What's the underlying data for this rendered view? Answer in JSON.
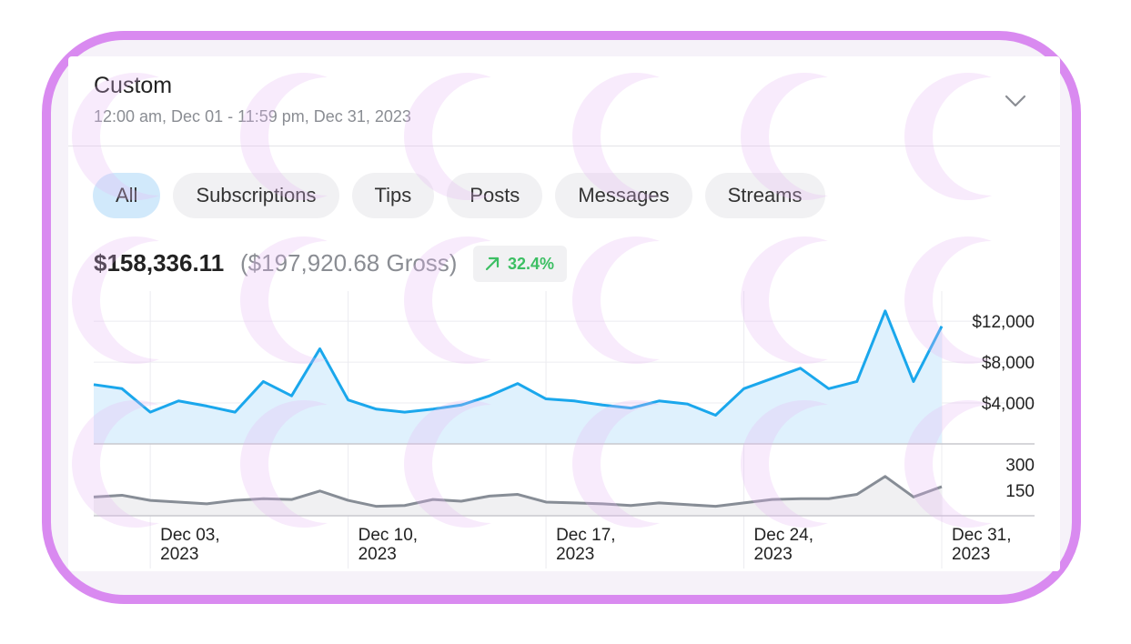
{
  "header": {
    "title": "Custom",
    "range": "12:00 am, Dec 01 - 11:59 pm, Dec 31, 2023"
  },
  "tabs": [
    {
      "label": "All",
      "active": true
    },
    {
      "label": "Subscriptions",
      "active": false
    },
    {
      "label": "Tips",
      "active": false
    },
    {
      "label": "Posts",
      "active": false
    },
    {
      "label": "Messages",
      "active": false
    },
    {
      "label": "Streams",
      "active": false
    }
  ],
  "summary": {
    "net": "$158,336.11",
    "gross": "($197,920.68 Gross)",
    "change": "32.4%",
    "change_color": "#3cbf63"
  },
  "colors": {
    "earnings_line": "#1aa7ec",
    "earnings_fill": "#dff1fd",
    "count_line": "#878d96",
    "count_fill": "#f0f0f2",
    "frame": "#d98af0"
  },
  "chart_data": [
    {
      "type": "area",
      "x": [
        "Dec 01",
        "Dec 02",
        "Dec 03",
        "Dec 04",
        "Dec 05",
        "Dec 06",
        "Dec 07",
        "Dec 08",
        "Dec 09",
        "Dec 10",
        "Dec 11",
        "Dec 12",
        "Dec 13",
        "Dec 14",
        "Dec 15",
        "Dec 16",
        "Dec 17",
        "Dec 18",
        "Dec 19",
        "Dec 20",
        "Dec 21",
        "Dec 22",
        "Dec 23",
        "Dec 24",
        "Dec 25",
        "Dec 26",
        "Dec 27",
        "Dec 28",
        "Dec 29",
        "Dec 30",
        "Dec 31"
      ],
      "values": [
        5800,
        5400,
        3100,
        4200,
        3700,
        3100,
        6100,
        4700,
        9300,
        4300,
        3400,
        3100,
        3400,
        3800,
        4700,
        5900,
        4400,
        4200,
        3800,
        3500,
        4200,
        3900,
        2800,
        5400,
        6400,
        7400,
        5400,
        6100,
        13000,
        6100,
        11500
      ],
      "ylim": [
        0,
        14500
      ],
      "yticks": [
        "$12,000",
        "$8,000",
        "$4,000"
      ],
      "ytick_values": [
        12000,
        8000,
        4000
      ]
    },
    {
      "type": "area",
      "x": [
        "Dec 01",
        "Dec 02",
        "Dec 03",
        "Dec 04",
        "Dec 05",
        "Dec 06",
        "Dec 07",
        "Dec 08",
        "Dec 09",
        "Dec 10",
        "Dec 11",
        "Dec 12",
        "Dec 13",
        "Dec 14",
        "Dec 15",
        "Dec 16",
        "Dec 17",
        "Dec 18",
        "Dec 19",
        "Dec 20",
        "Dec 21",
        "Dec 22",
        "Dec 23",
        "Dec 24",
        "Dec 25",
        "Dec 26",
        "Dec 27",
        "Dec 28",
        "Dec 29",
        "Dec 30",
        "Dec 31"
      ],
      "values": [
        110,
        120,
        90,
        80,
        70,
        90,
        100,
        95,
        145,
        90,
        55,
        60,
        95,
        85,
        115,
        125,
        80,
        75,
        70,
        60,
        75,
        65,
        55,
        75,
        95,
        100,
        100,
        125,
        230,
        110,
        170
      ],
      "ylim": [
        0,
        330
      ],
      "yticks": [
        "300",
        "150"
      ],
      "ytick_values": [
        300,
        150
      ],
      "xticks": [
        {
          "index": 2,
          "line1": "Dec 03,",
          "line2": "2023"
        },
        {
          "index": 9,
          "line1": "Dec 10,",
          "line2": "2023"
        },
        {
          "index": 16,
          "line1": "Dec 17,",
          "line2": "2023"
        },
        {
          "index": 23,
          "line1": "Dec 24,",
          "line2": "2023"
        },
        {
          "index": 30,
          "line1": "Dec 31,",
          "line2": "2023"
        }
      ]
    }
  ]
}
